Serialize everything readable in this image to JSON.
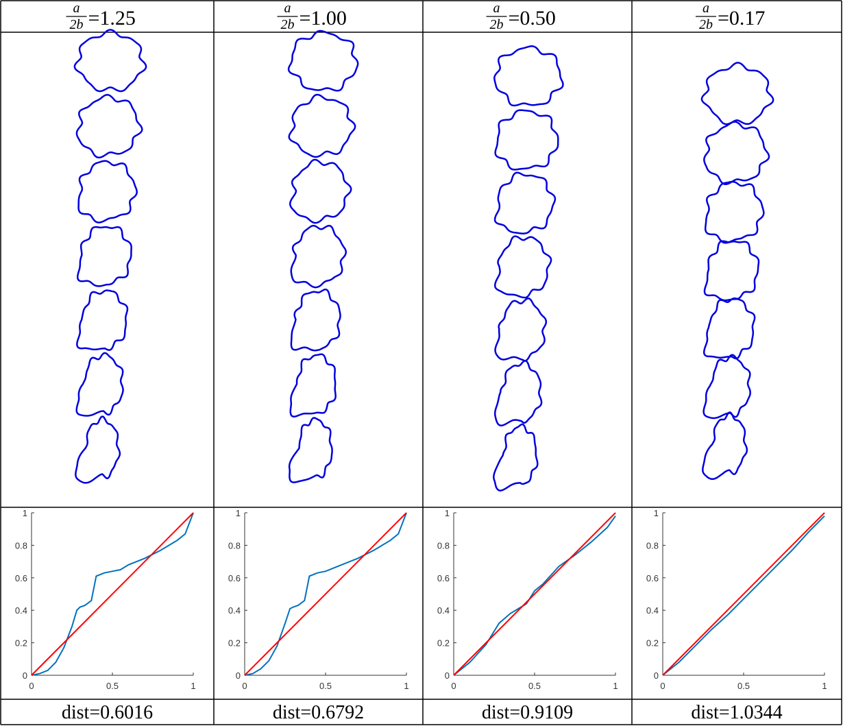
{
  "columns": [
    {
      "header": {
        "numerator": "a",
        "denominator": "2b",
        "value": "=1.25"
      },
      "chart": {
        "type": "line",
        "xlim": [
          0,
          1
        ],
        "ylim": [
          0,
          1
        ],
        "xticks": [
          0,
          0.5,
          1
        ],
        "yticks": [
          0,
          0.2,
          0.4,
          0.6,
          0.8,
          1
        ],
        "series": [
          {
            "color": "#0072bd",
            "x": [
              0,
              0.05,
              0.1,
              0.15,
              0.2,
              0.25,
              0.28,
              0.3,
              0.33,
              0.37,
              0.4,
              0.45,
              0.5,
              0.55,
              0.6,
              0.7,
              0.8,
              0.85,
              0.9,
              0.95,
              1
            ],
            "values": [
              0,
              0.01,
              0.03,
              0.08,
              0.17,
              0.3,
              0.4,
              0.42,
              0.43,
              0.46,
              0.61,
              0.63,
              0.64,
              0.65,
              0.68,
              0.72,
              0.77,
              0.8,
              0.83,
              0.87,
              1
            ]
          },
          {
            "color": "#ff0000",
            "x": [
              0,
              1
            ],
            "values": [
              0,
              1
            ]
          }
        ]
      },
      "footer": "dist=0.6016"
    },
    {
      "header": {
        "numerator": "a",
        "denominator": "2b",
        "value": "=1.00"
      },
      "chart": {
        "type": "line",
        "xlim": [
          0,
          1
        ],
        "ylim": [
          0,
          1
        ],
        "xticks": [
          0,
          0.5,
          1
        ],
        "yticks": [
          0,
          0.2,
          0.4,
          0.6,
          0.8,
          1
        ],
        "series": [
          {
            "color": "#0072bd",
            "x": [
              0,
              0.05,
              0.1,
              0.15,
              0.2,
              0.25,
              0.28,
              0.3,
              0.33,
              0.37,
              0.4,
              0.45,
              0.5,
              0.55,
              0.6,
              0.7,
              0.8,
              0.85,
              0.9,
              0.95,
              1
            ],
            "values": [
              0,
              0.01,
              0.04,
              0.09,
              0.18,
              0.32,
              0.41,
              0.42,
              0.43,
              0.46,
              0.61,
              0.63,
              0.64,
              0.66,
              0.68,
              0.72,
              0.77,
              0.8,
              0.83,
              0.87,
              1
            ]
          },
          {
            "color": "#ff0000",
            "x": [
              0,
              1
            ],
            "values": [
              0,
              1
            ]
          }
        ]
      },
      "footer": "dist=0.6792"
    },
    {
      "header": {
        "numerator": "a",
        "denominator": "2b",
        "value": "=0.50"
      },
      "chart": {
        "type": "line",
        "xlim": [
          0,
          1
        ],
        "ylim": [
          0,
          1
        ],
        "xticks": [
          0,
          0.5,
          1
        ],
        "yticks": [
          0,
          0.2,
          0.4,
          0.6,
          0.8,
          1
        ],
        "series": [
          {
            "color": "#0072bd",
            "x": [
              0,
              0.1,
              0.2,
              0.28,
              0.35,
              0.45,
              0.5,
              0.55,
              0.65,
              0.75,
              0.85,
              0.95,
              1
            ],
            "values": [
              0,
              0.08,
              0.19,
              0.32,
              0.38,
              0.44,
              0.52,
              0.56,
              0.67,
              0.74,
              0.82,
              0.91,
              0.98
            ]
          },
          {
            "color": "#ff0000",
            "x": [
              0,
              1
            ],
            "values": [
              0,
              1
            ]
          }
        ]
      },
      "footer": "dist=0.9109"
    },
    {
      "header": {
        "numerator": "a",
        "denominator": "2b",
        "value": "=0.17"
      },
      "chart": {
        "type": "line",
        "xlim": [
          0,
          1
        ],
        "ylim": [
          0,
          1
        ],
        "xticks": [
          0,
          0.5,
          1
        ],
        "yticks": [
          0,
          0.2,
          0.4,
          0.6,
          0.8,
          1
        ],
        "series": [
          {
            "color": "#0072bd",
            "x": [
              0,
              0.1,
              0.2,
              0.3,
              0.4,
              0.5,
              0.6,
              0.7,
              0.8,
              0.9,
              1
            ],
            "values": [
              0,
              0.08,
              0.18,
              0.28,
              0.37,
              0.47,
              0.57,
              0.67,
              0.77,
              0.88,
              0.98
            ]
          },
          {
            "color": "#ff0000",
            "x": [
              0,
              1
            ],
            "values": [
              0,
              1
            ]
          }
        ]
      },
      "footer": "dist=1.0344"
    }
  ]
}
